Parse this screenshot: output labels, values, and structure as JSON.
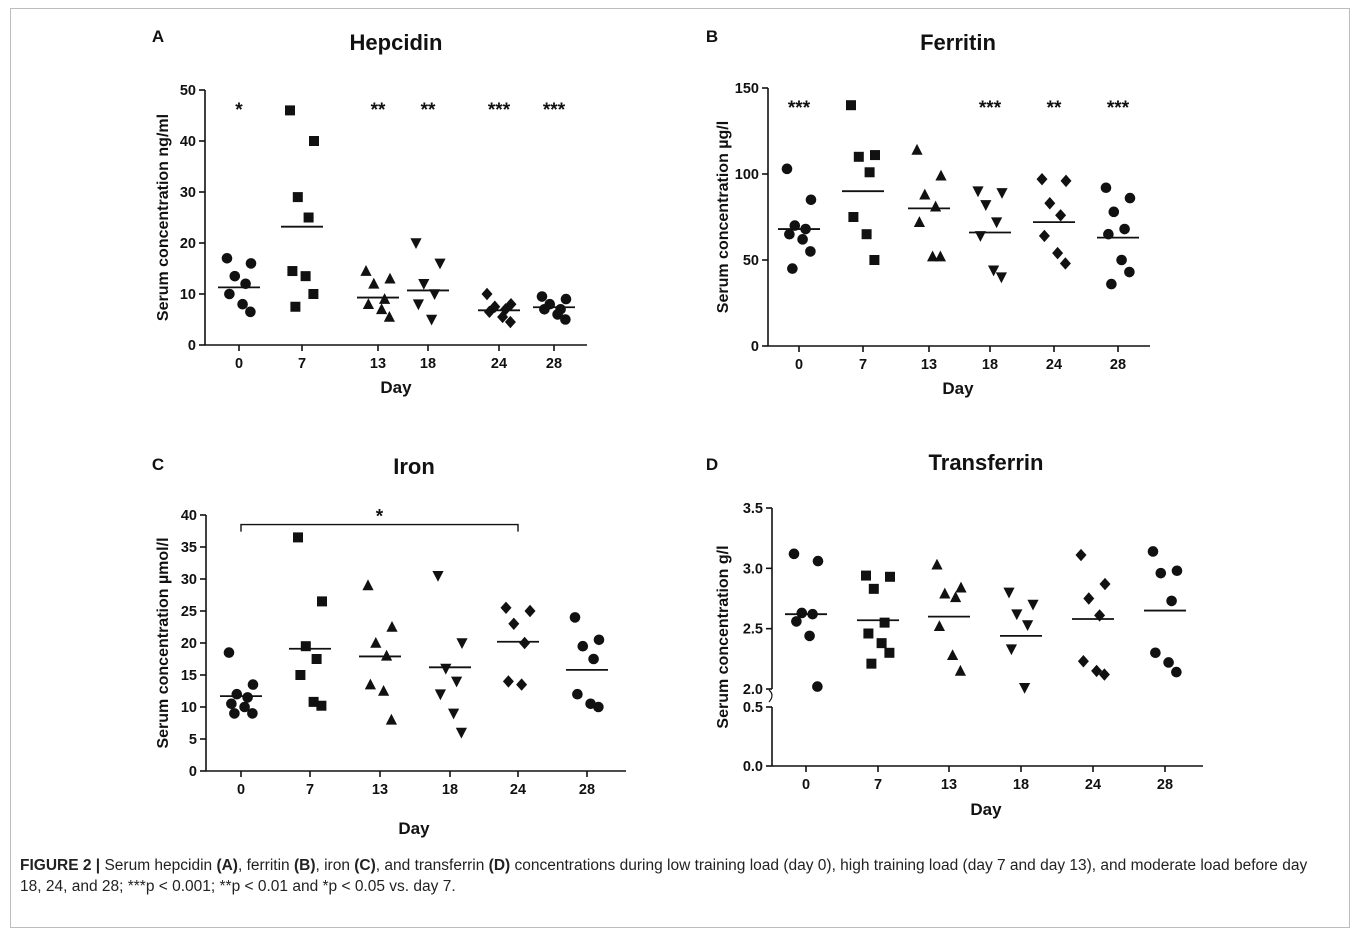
{
  "caption": {
    "figure_label": "FIGURE 2 |",
    "parts": [
      {
        "t": " Serum hepcidin ",
        "b": false
      },
      {
        "t": "(A)",
        "b": true
      },
      {
        "t": ", ferritin ",
        "b": false
      },
      {
        "t": "(B)",
        "b": true
      },
      {
        "t": ", iron ",
        "b": false
      },
      {
        "t": "(C)",
        "b": true
      },
      {
        "t": ", and transferrin ",
        "b": false
      },
      {
        "t": "(D)",
        "b": true
      },
      {
        "t": " concentrations during low training load (day 0), high training load (day 7 and day 13), and moderate load before day 18, 24, and 28; ***p < 0.001; **p < 0.01 and *p < 0.05 vs. day 7.",
        "b": false
      }
    ]
  },
  "chart_data": [
    {
      "panel": "A",
      "type": "scatter",
      "title": "Hepcidin",
      "xlabel": "Day",
      "ylabel": "Serum concentration ng/ml",
      "categories": [
        "0",
        "7",
        "13",
        "18",
        "24",
        "28"
      ],
      "ylim": [
        0,
        50
      ],
      "yticks": [
        0,
        10,
        20,
        30,
        40,
        50
      ],
      "markers": [
        "circle",
        "square",
        "triangle-up",
        "triangle-down",
        "diamond",
        "circle"
      ],
      "points": [
        [
          17,
          16,
          13.5,
          12,
          10,
          8,
          6.5
        ],
        [
          46,
          40,
          29,
          25,
          14.5,
          13.5,
          10,
          7.5
        ],
        [
          14.5,
          13,
          12,
          9,
          8,
          7,
          5.5
        ],
        [
          20,
          16,
          12,
          10,
          8,
          5
        ],
        [
          10,
          8,
          7.5,
          7,
          6.5,
          5.5,
          4.5
        ],
        [
          9.5,
          9,
          8,
          7,
          7,
          6,
          5
        ]
      ],
      "means": [
        11.3,
        23.2,
        9.3,
        10.7,
        6.8,
        7.4
      ],
      "annotations": [
        "*",
        "",
        "**",
        "**",
        "***",
        "***"
      ]
    },
    {
      "panel": "B",
      "type": "scatter",
      "title": "Ferritin",
      "xlabel": "Day",
      "ylabel": "Serum concentration µg/l",
      "categories": [
        "0",
        "7",
        "13",
        "18",
        "24",
        "28"
      ],
      "ylim": [
        0,
        150
      ],
      "yticks": [
        0,
        50,
        100,
        150
      ],
      "markers": [
        "circle",
        "square",
        "triangle-up",
        "triangle-down",
        "diamond",
        "circle"
      ],
      "points": [
        [
          103,
          85,
          70,
          68,
          65,
          62,
          55,
          45
        ],
        [
          140,
          111,
          110,
          101,
          75,
          65,
          50
        ],
        [
          114,
          99,
          88,
          81,
          72,
          52,
          52
        ],
        [
          90,
          89,
          82,
          72,
          64,
          44,
          40
        ],
        [
          97,
          96,
          83,
          76,
          64,
          54,
          48
        ],
        [
          92,
          86,
          78,
          68,
          65,
          50,
          43,
          36
        ]
      ],
      "means": [
        68,
        90,
        80,
        66,
        72,
        63
      ],
      "annotations": [
        "***",
        "",
        "",
        "***",
        "**",
        "***"
      ]
    },
    {
      "panel": "C",
      "type": "scatter",
      "title": "Iron",
      "xlabel": "Day",
      "ylabel": "Serum concentration µmol/l",
      "categories": [
        "0",
        "7",
        "13",
        "18",
        "24",
        "28"
      ],
      "ylim": [
        0,
        40
      ],
      "yticks": [
        0,
        5,
        10,
        15,
        20,
        25,
        30,
        35,
        40
      ],
      "markers": [
        "circle",
        "square",
        "triangle-up",
        "triangle-down",
        "diamond",
        "circle"
      ],
      "points": [
        [
          18.5,
          13.5,
          12,
          11.5,
          10.5,
          10,
          9,
          9
        ],
        [
          36.5,
          26.5,
          19.5,
          17.5,
          15,
          10.8,
          10.2
        ],
        [
          29,
          22.5,
          20,
          18,
          13.5,
          12.5,
          8
        ],
        [
          30.5,
          20,
          16,
          14,
          12,
          9,
          6
        ],
        [
          25.5,
          25,
          23,
          20,
          14,
          13.5
        ],
        [
          24,
          20.5,
          19.5,
          17.5,
          12,
          10.5,
          10
        ]
      ],
      "means": [
        11.7,
        19.1,
        17.9,
        16.2,
        20.2,
        15.8
      ],
      "bracket": {
        "from": "0",
        "to": "24",
        "y": 38.5,
        "label": "*"
      }
    },
    {
      "panel": "D",
      "type": "scatter",
      "title": "Transferrin",
      "xlabel": "Day",
      "ylabel": "Serum concentration g/l",
      "categories": [
        "0",
        "7",
        "13",
        "18",
        "24",
        "28"
      ],
      "axis_break": {
        "lower": [
          0.0,
          0.5
        ],
        "upper": [
          2.0,
          3.5
        ]
      },
      "yticks_lower": [
        0.0,
        0.5
      ],
      "yticks_upper": [
        2.0,
        2.5,
        3.0,
        3.5
      ],
      "markers": [
        "circle",
        "square",
        "triangle-up",
        "triangle-down",
        "diamond",
        "circle"
      ],
      "points": [
        [
          3.12,
          3.06,
          2.63,
          2.62,
          2.56,
          2.44,
          2.02
        ],
        [
          2.94,
          2.93,
          2.83,
          2.55,
          2.46,
          2.38,
          2.3,
          2.21
        ],
        [
          3.03,
          2.84,
          2.79,
          2.76,
          2.52,
          2.28,
          2.15
        ],
        [
          2.8,
          2.7,
          2.62,
          2.53,
          2.33,
          2.01
        ],
        [
          3.11,
          2.87,
          2.75,
          2.61,
          2.23,
          2.15,
          2.12
        ],
        [
          3.14,
          2.98,
          2.96,
          2.73,
          2.3,
          2.22,
          2.14
        ]
      ],
      "means": [
        2.62,
        2.57,
        2.6,
        2.44,
        2.58,
        2.65
      ]
    }
  ]
}
